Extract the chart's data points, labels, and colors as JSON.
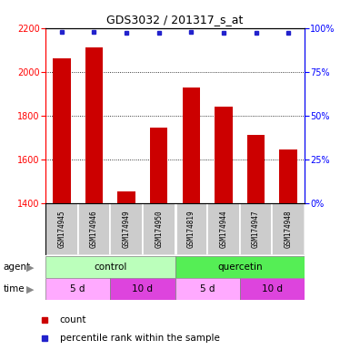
{
  "title": "GDS3032 / 201317_s_at",
  "samples": [
    "GSM174945",
    "GSM174946",
    "GSM174949",
    "GSM174950",
    "GSM174819",
    "GSM174944",
    "GSM174947",
    "GSM174948"
  ],
  "counts": [
    2060,
    2110,
    1455,
    1745,
    1930,
    1840,
    1710,
    1645
  ],
  "percentile_ranks": [
    98,
    98,
    97,
    97,
    98,
    97,
    97,
    97
  ],
  "ylim_left": [
    1400,
    2200
  ],
  "yticks_left": [
    1400,
    1600,
    1800,
    2000,
    2200
  ],
  "ylim_right": [
    0,
    100
  ],
  "yticks_right": [
    0,
    25,
    50,
    75,
    100
  ],
  "bar_color": "#cc0000",
  "dot_color": "#2222cc",
  "agent_control_label": "control",
  "agent_quercetin_label": "quercetin",
  "agent_control_color": "#bbffbb",
  "agent_quercetin_color": "#55ee55",
  "time_5d_color": "#ffaaff",
  "time_10d_color": "#dd44dd",
  "agent_row_label": "agent",
  "time_row_label": "time",
  "legend_count_label": "count",
  "legend_pct_label": "percentile rank within the sample",
  "sample_label_bg": "#cccccc",
  "arrow_color": "#888888"
}
